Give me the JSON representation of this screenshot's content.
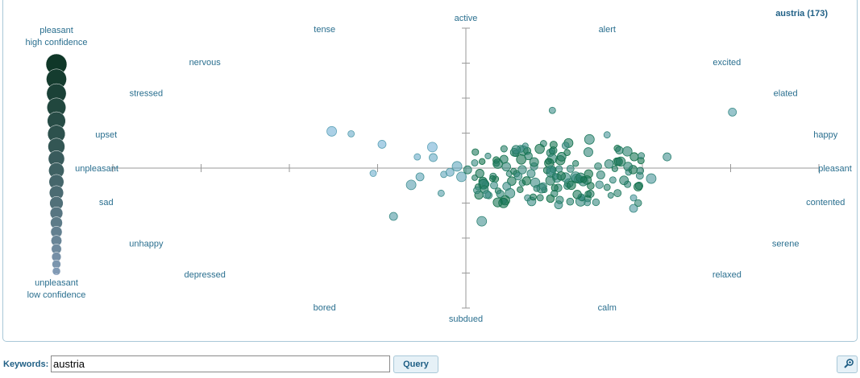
{
  "title": "austria (173)",
  "legend": {
    "top_line1": "pleasant",
    "top_line2": "high confidence",
    "bottom_line1": "unpleasant",
    "bottom_line2": "low confidence"
  },
  "controls": {
    "keywords_label": "Keywords:",
    "keywords_value": "austria",
    "query_label": "Query",
    "zoom_icon": "magnifier-icon"
  },
  "colors": {
    "axis": "#999999",
    "label": "#2a6f8f",
    "pleasant": "#0f7a4a",
    "unpleasant": "#4b93c8"
  },
  "chart_data": {
    "type": "scatter",
    "title": "austria (173)",
    "axes": {
      "x": {
        "range": [
          -4,
          4
        ],
        "negative_label": "unpleasant",
        "positive_label": "pleasant"
      },
      "y": {
        "range": [
          -4,
          4
        ],
        "negative_label": "subdued",
        "positive_label": "active"
      }
    },
    "emotion_labels": [
      {
        "text": "active",
        "angle": 90
      },
      {
        "text": "alert",
        "angle": 67.5
      },
      {
        "text": "excited",
        "angle": 45
      },
      {
        "text": "elated",
        "angle": 30
      },
      {
        "text": "happy",
        "angle": 13
      },
      {
        "text": "pleasant",
        "angle": 0
      },
      {
        "text": "contented",
        "angle": -13
      },
      {
        "text": "serene",
        "angle": -30
      },
      {
        "text": "relaxed",
        "angle": -45
      },
      {
        "text": "calm",
        "angle": -67.5
      },
      {
        "text": "subdued",
        "angle": -90
      },
      {
        "text": "bored",
        "angle": -112.5
      },
      {
        "text": "depressed",
        "angle": -135
      },
      {
        "text": "unhappy",
        "angle": -150
      },
      {
        "text": "sad",
        "angle": -167
      },
      {
        "text": "unpleasant",
        "angle": 180
      },
      {
        "text": "upset",
        "angle": 167
      },
      {
        "text": "stressed",
        "angle": 150
      },
      {
        "text": "nervous",
        "angle": 135
      },
      {
        "text": "tense",
        "angle": 112.5
      }
    ],
    "points": [
      {
        "x": 0.98,
        "y": 1.65,
        "c": 0.55
      },
      {
        "x": 3.02,
        "y": 1.6,
        "c": 0.35
      },
      {
        "x": -1.52,
        "y": 1.05,
        "c": 0.05
      },
      {
        "x": -1.3,
        "y": 0.98,
        "c": 0.12
      },
      {
        "x": -0.95,
        "y": 0.68,
        "c": 0.05
      },
      {
        "x": -0.38,
        "y": 0.6,
        "c": 0.05
      },
      {
        "x": -0.55,
        "y": 0.32,
        "c": 0.12
      },
      {
        "x": -0.37,
        "y": 0.3,
        "c": 0.15
      },
      {
        "x": -0.1,
        "y": 0.05,
        "c": 0.2
      },
      {
        "x": -1.05,
        "y": -0.15,
        "c": 0.1
      },
      {
        "x": -0.52,
        "y": -0.25,
        "c": 0.25
      },
      {
        "x": -0.62,
        "y": -0.48,
        "c": 0.3
      },
      {
        "x": -0.28,
        "y": -0.72,
        "c": 0.35
      },
      {
        "x": -0.82,
        "y": -1.38,
        "c": 0.38
      },
      {
        "x": 0.18,
        "y": -1.52,
        "c": 0.5
      },
      {
        "x": -0.25,
        "y": -0.18,
        "c": 0.22
      },
      {
        "x": -0.18,
        "y": -0.12,
        "c": 0.18
      },
      {
        "x": -0.05,
        "y": -0.25,
        "c": 0.25
      },
      {
        "x": 1.6,
        "y": 0.95,
        "c": 0.45
      },
      {
        "x": 2.28,
        "y": 0.32,
        "c": 0.5
      },
      {
        "x": 2.1,
        "y": -0.3,
        "c": 0.45
      },
      {
        "x": 1.9,
        "y": -0.85,
        "c": 0.4
      },
      {
        "x": 1.9,
        "y": -1.15,
        "c": 0.4
      },
      {
        "x": 1.4,
        "y": 0.82,
        "c": 0.65
      },
      {
        "x": 0.88,
        "y": 0.7,
        "c": 0.7
      },
      {
        "x": 0.55,
        "y": 0.45,
        "c": 0.72
      },
      {
        "x": 0.65,
        "y": 0.5,
        "c": 0.8
      },
      {
        "x": 0.1,
        "y": 0.15,
        "c": 0.6
      },
      {
        "x": 0.02,
        "y": -0.05,
        "c": 0.65
      },
      {
        "x": 0.5,
        "y": -0.72,
        "c": 0.6
      },
      {
        "x": 0.7,
        "y": -0.85,
        "c": 0.55
      },
      {
        "x": 1.05,
        "y": -1.05,
        "c": 0.55
      },
      {
        "x": 1.3,
        "y": -0.95,
        "c": 0.6
      },
      {
        "x": 1.6,
        "y": -0.55,
        "c": 0.7
      }
    ]
  }
}
